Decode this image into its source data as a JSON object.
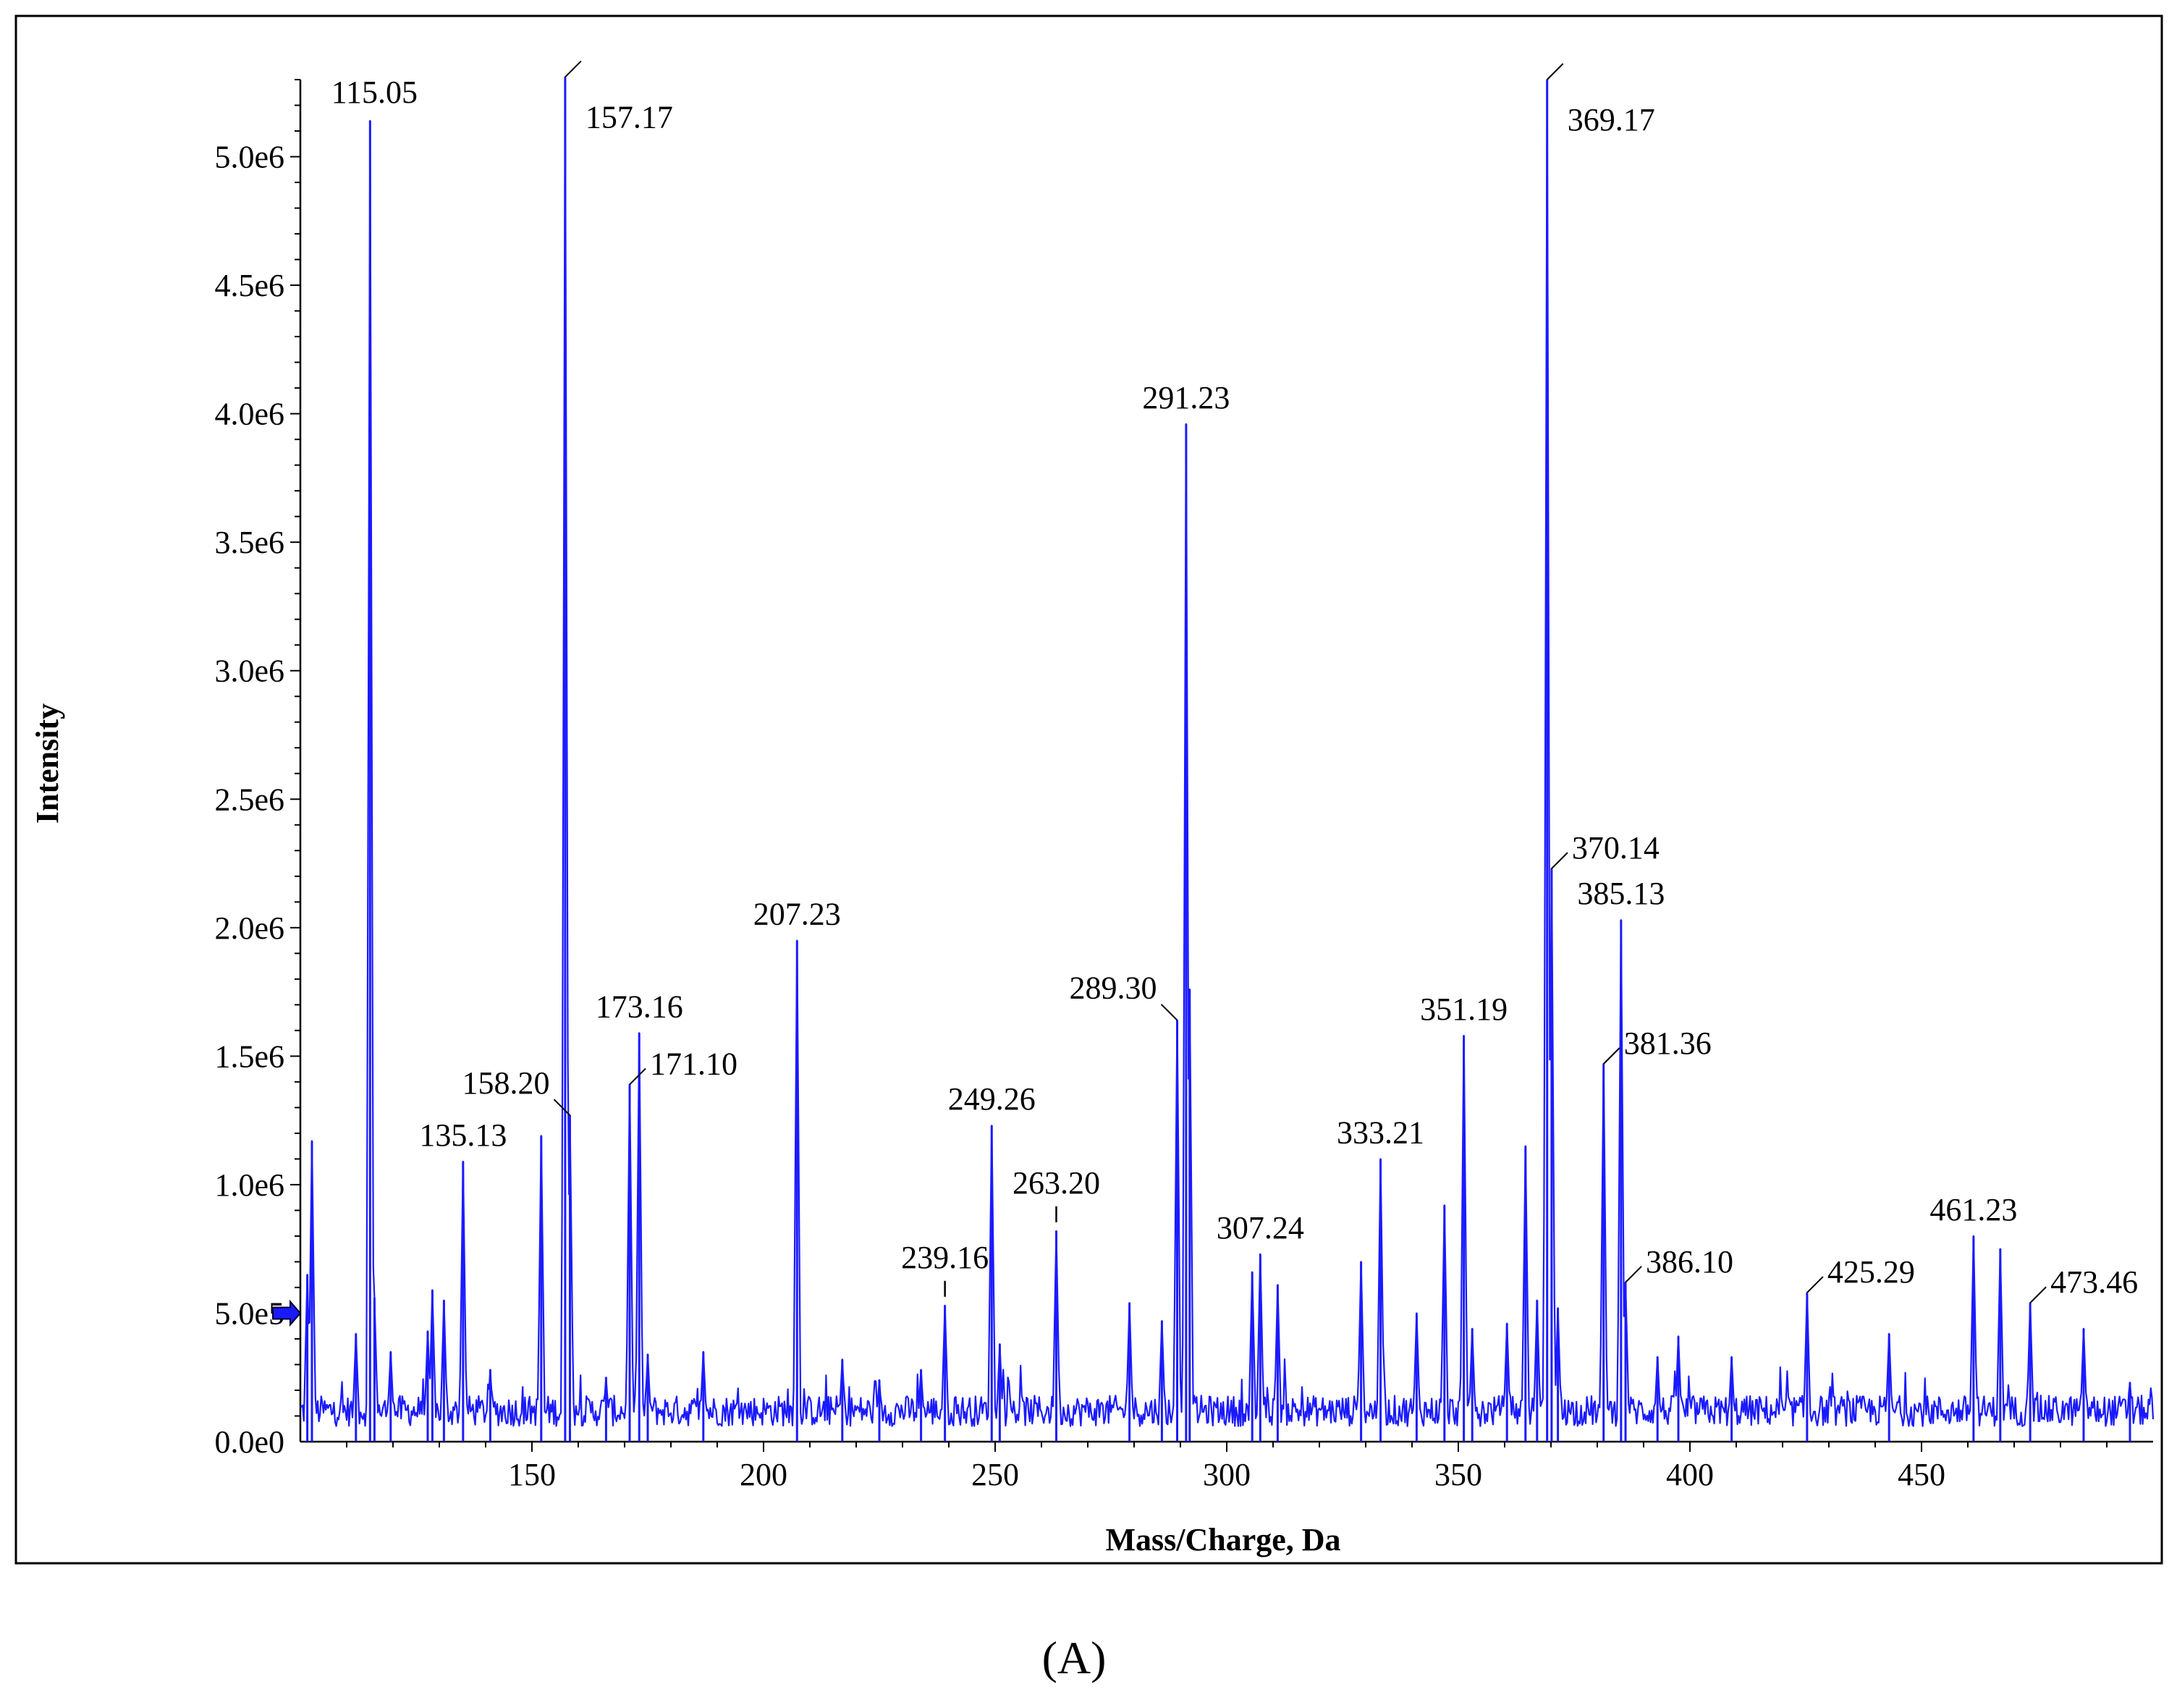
{
  "chart_data": {
    "type": "line",
    "title": "",
    "xlabel": "Mass/Charge, Da",
    "ylabel": "Intensity",
    "xlim": [
      100,
      500
    ],
    "ylim": [
      0,
      5300000
    ],
    "grid": false,
    "x_ticks": [
      150,
      200,
      250,
      300,
      350,
      400,
      450
    ],
    "x_tick_labels": [
      "150",
      "200",
      "250",
      "300",
      "350",
      "400",
      "450"
    ],
    "y_ticks": [
      0,
      500000,
      1000000,
      1500000,
      2000000,
      2500000,
      3000000,
      3500000,
      4000000,
      4500000,
      5000000
    ],
    "y_tick_labels": [
      "0.0e0",
      "5.0e5",
      "1.0e6",
      "1.5e6",
      "2.0e6",
      "2.5e6",
      "3.0e6",
      "3.5e6",
      "4.0e6",
      "4.5e6",
      "5.0e6"
    ],
    "threshold_marker": 500000,
    "line_color": "#1a1aff",
    "peaks": [
      {
        "x": 101.5,
        "y": 650000
      },
      {
        "x": 102.5,
        "y": 1170000
      },
      {
        "x": 112.0,
        "y": 420000
      },
      {
        "x": 115.05,
        "y": 5140000,
        "label": "115.05"
      },
      {
        "x": 116.0,
        "y": 560000
      },
      {
        "x": 119.5,
        "y": 350000
      },
      {
        "x": 127.5,
        "y": 430000
      },
      {
        "x": 128.5,
        "y": 590000
      },
      {
        "x": 131.0,
        "y": 550000
      },
      {
        "x": 135.13,
        "y": 1090000,
        "label": "135.13"
      },
      {
        "x": 141.0,
        "y": 280000
      },
      {
        "x": 152.0,
        "y": 1190000
      },
      {
        "x": 157.17,
        "y": 5310000,
        "label": "157.17"
      },
      {
        "x": 158.2,
        "y": 1270000,
        "label": "158.20"
      },
      {
        "x": 166.0,
        "y": 250000
      },
      {
        "x": 171.1,
        "y": 1390000,
        "label": "171.10"
      },
      {
        "x": 173.16,
        "y": 1590000,
        "label": "173.16"
      },
      {
        "x": 175.0,
        "y": 340000
      },
      {
        "x": 187.0,
        "y": 350000
      },
      {
        "x": 207.23,
        "y": 1950000,
        "label": "207.23"
      },
      {
        "x": 217.0,
        "y": 320000
      },
      {
        "x": 225.0,
        "y": 240000
      },
      {
        "x": 234.0,
        "y": 280000
      },
      {
        "x": 239.16,
        "y": 530000,
        "label": "239.16"
      },
      {
        "x": 249.26,
        "y": 1230000,
        "label": "249.26"
      },
      {
        "x": 251.0,
        "y": 380000
      },
      {
        "x": 263.2,
        "y": 820000,
        "label": "263.20"
      },
      {
        "x": 279.0,
        "y": 540000
      },
      {
        "x": 286.0,
        "y": 470000
      },
      {
        "x": 289.3,
        "y": 1640000,
        "label": "289.30"
      },
      {
        "x": 291.23,
        "y": 3960000,
        "label": "291.23"
      },
      {
        "x": 292.0,
        "y": 1760000
      },
      {
        "x": 305.5,
        "y": 660000
      },
      {
        "x": 307.24,
        "y": 730000,
        "label": "307.24"
      },
      {
        "x": 311.0,
        "y": 610000
      },
      {
        "x": 329.0,
        "y": 700000
      },
      {
        "x": 333.21,
        "y": 1100000,
        "label": "333.21"
      },
      {
        "x": 341.0,
        "y": 500000
      },
      {
        "x": 347.0,
        "y": 920000
      },
      {
        "x": 351.19,
        "y": 1580000,
        "label": "351.19"
      },
      {
        "x": 353.0,
        "y": 440000
      },
      {
        "x": 360.5,
        "y": 460000
      },
      {
        "x": 364.5,
        "y": 1150000
      },
      {
        "x": 367.0,
        "y": 550000
      },
      {
        "x": 369.17,
        "y": 5300000,
        "label": "369.17"
      },
      {
        "x": 370.14,
        "y": 2230000,
        "label": "370.14"
      },
      {
        "x": 371.5,
        "y": 520000
      },
      {
        "x": 381.36,
        "y": 1470000,
        "label": "381.36"
      },
      {
        "x": 385.13,
        "y": 2030000,
        "label": "385.13"
      },
      {
        "x": 386.1,
        "y": 620000,
        "label": "386.10"
      },
      {
        "x": 393.0,
        "y": 330000
      },
      {
        "x": 397.5,
        "y": 410000
      },
      {
        "x": 409.0,
        "y": 330000
      },
      {
        "x": 425.29,
        "y": 580000,
        "label": "425.29"
      },
      {
        "x": 443.0,
        "y": 420000
      },
      {
        "x": 461.23,
        "y": 800000,
        "label": "461.23"
      },
      {
        "x": 467.0,
        "y": 750000
      },
      {
        "x": 473.46,
        "y": 540000,
        "label": "473.46"
      },
      {
        "x": 485.0,
        "y": 440000
      },
      {
        "x": 495.0,
        "y": 230000
      }
    ],
    "annotations": [
      {
        "text": "115.05",
        "x": 115.05,
        "y": 5140000,
        "pos": "top-right"
      },
      {
        "text": "157.17",
        "x": 157.17,
        "y": 5310000,
        "pos": "leader-right"
      },
      {
        "text": "369.17",
        "x": 369.17,
        "y": 5300000,
        "pos": "leader-right"
      },
      {
        "text": "291.23",
        "x": 291.23,
        "y": 3960000,
        "pos": "top"
      },
      {
        "text": "370.14",
        "x": 370.14,
        "y": 2230000,
        "pos": "leader-right"
      },
      {
        "text": "385.13",
        "x": 385.13,
        "y": 2030000,
        "pos": "top"
      },
      {
        "text": "207.23",
        "x": 207.23,
        "y": 1950000,
        "pos": "top"
      },
      {
        "text": "381.36",
        "x": 381.36,
        "y": 1470000,
        "pos": "leader-right"
      },
      {
        "text": "289.30",
        "x": 289.3,
        "y": 1640000,
        "pos": "leader-left"
      },
      {
        "text": "173.16",
        "x": 173.16,
        "y": 1590000,
        "pos": "top"
      },
      {
        "text": "351.19",
        "x": 351.19,
        "y": 1580000,
        "pos": "top"
      },
      {
        "text": "158.20",
        "x": 158.2,
        "y": 1270000,
        "pos": "leader-left"
      },
      {
        "text": "171.10",
        "x": 171.1,
        "y": 1390000,
        "pos": "leader-right"
      },
      {
        "text": "135.13",
        "x": 135.13,
        "y": 1090000,
        "pos": "top"
      },
      {
        "text": "249.26",
        "x": 249.26,
        "y": 1230000,
        "pos": "top"
      },
      {
        "text": "333.21",
        "x": 333.21,
        "y": 1100000,
        "pos": "top"
      },
      {
        "text": "263.20",
        "x": 263.2,
        "y": 820000,
        "pos": "tick-top"
      },
      {
        "text": "307.24",
        "x": 307.24,
        "y": 730000,
        "pos": "top"
      },
      {
        "text": "386.10",
        "x": 386.1,
        "y": 620000,
        "pos": "leader-right"
      },
      {
        "text": "239.16",
        "x": 239.16,
        "y": 530000,
        "pos": "tick-top"
      },
      {
        "text": "425.29",
        "x": 425.29,
        "y": 580000,
        "pos": "leader-right"
      },
      {
        "text": "461.23",
        "x": 461.23,
        "y": 800000,
        "pos": "top"
      },
      {
        "text": "473.46",
        "x": 473.46,
        "y": 540000,
        "pos": "leader-right"
      }
    ]
  },
  "caption": "(A)"
}
